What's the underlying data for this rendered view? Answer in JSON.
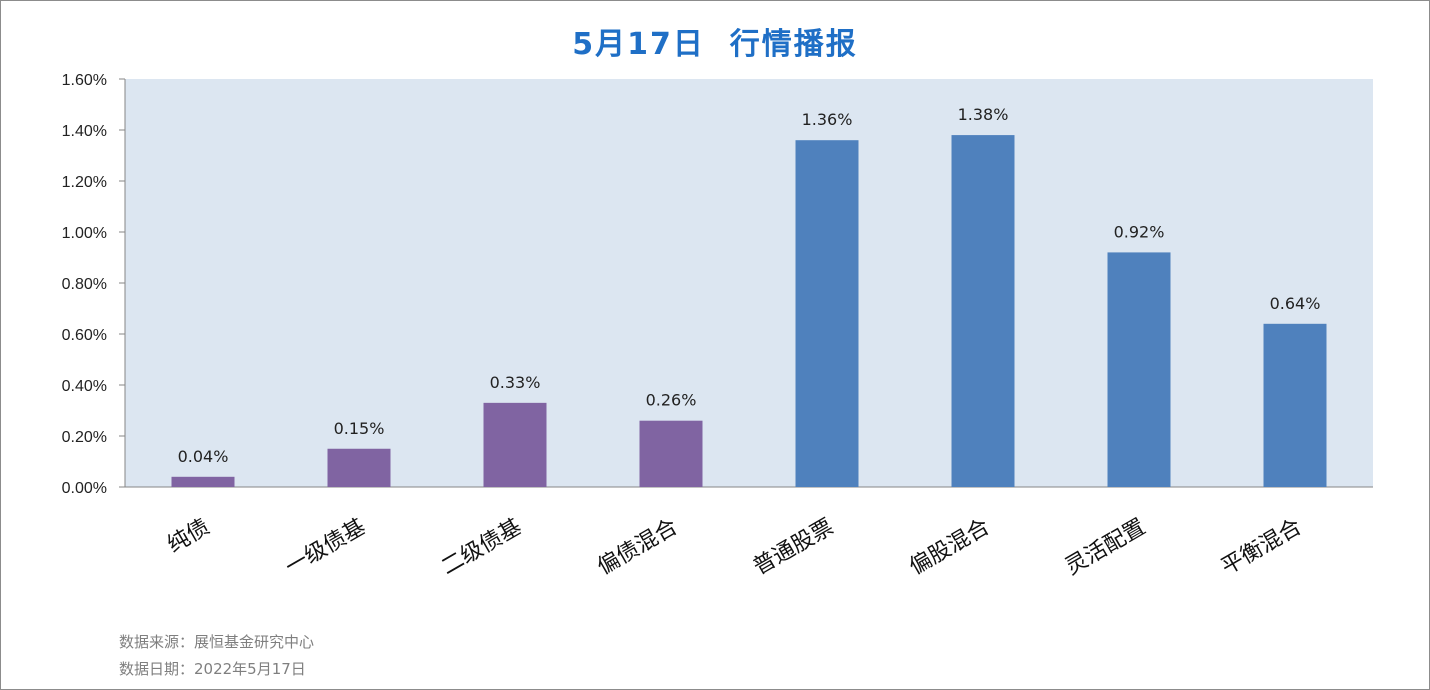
{
  "title": "5月17日  行情播报",
  "source": {
    "line1": "数据来源：展恒基金研究中心",
    "line2": "数据日期：2022年5月17日"
  },
  "colors": {
    "plot_bg": "#dce6f1",
    "bond_bar": "#8064a2",
    "equity_bar": "#4f81bd",
    "title": "#1f6fc6"
  },
  "chart_data": {
    "type": "bar",
    "title": "5月17日  行情播报",
    "xlabel": "",
    "ylabel": "",
    "ylim": [
      0,
      1.6
    ],
    "unit": "%",
    "yticks": [
      "0.00%",
      "0.20%",
      "0.40%",
      "0.60%",
      "0.80%",
      "1.00%",
      "1.20%",
      "1.40%",
      "1.60%"
    ],
    "grid": false,
    "legend": "none",
    "categories": [
      "纯债",
      "一级债基",
      "二级债基",
      "偏债混合",
      "普通股票",
      "偏股混合",
      "灵活配置",
      "平衡混合"
    ],
    "values": [
      0.04,
      0.15,
      0.33,
      0.26,
      1.36,
      1.38,
      0.92,
      0.64
    ],
    "labels": [
      "0.04%",
      "0.15%",
      "0.33%",
      "0.26%",
      "1.36%",
      "1.38%",
      "0.92%",
      "0.64%"
    ],
    "bar_colors": [
      "#8064a2",
      "#8064a2",
      "#8064a2",
      "#8064a2",
      "#4f81bd",
      "#4f81bd",
      "#4f81bd",
      "#4f81bd"
    ]
  }
}
